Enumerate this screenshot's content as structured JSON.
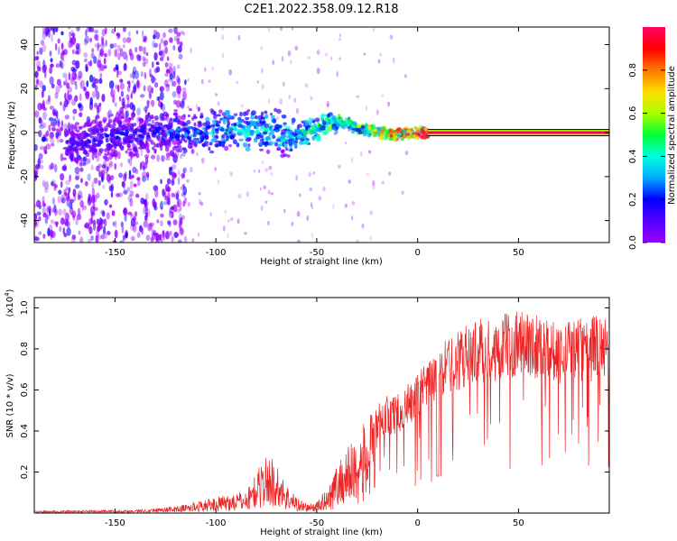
{
  "title": "C2E1.2022.358.09.12.R18",
  "colors": {
    "snr_line": "#ee2222",
    "axis": "#000000",
    "background": "#ffffff",
    "colorbar": [
      "#9900ff",
      "#5500ff",
      "#0000ff",
      "#00aaff",
      "#00ffdd",
      "#00ff33",
      "#aaff00",
      "#ffdd00",
      "#ff7700",
      "#ff0000",
      "#ff0066"
    ]
  },
  "chart_data": [
    {
      "type": "heatmap",
      "name": "spectrogram",
      "xlabel": "Height of straight line (km)",
      "ylabel": "Frequency (Hz)",
      "xlim": [
        -190,
        95
      ],
      "ylim": [
        -50,
        48
      ],
      "xticks": [
        -150,
        -100,
        -50,
        0,
        50
      ],
      "xtick_labels": [
        "-150",
        "-100",
        "-50",
        "0",
        "50"
      ],
      "yticks": [
        -40,
        -20,
        0,
        20,
        40
      ],
      "ytick_labels": [
        "-40",
        "-20",
        "0",
        "20",
        "40"
      ],
      "colorbar": {
        "label": "Normalized spectral amplitude",
        "range": [
          0,
          1
        ],
        "ticks": [
          0.0,
          0.2,
          0.4,
          0.6,
          0.8
        ],
        "tick_labels": [
          "0.0",
          "0.2",
          "0.4",
          "0.6",
          "0.8"
        ]
      },
      "ridge_x": [
        -170,
        -150,
        -130,
        -110,
        -90,
        -70,
        -65,
        -55,
        -45,
        -38,
        -30,
        -20,
        -10,
        0,
        5,
        95
      ],
      "ridge_y": [
        -5,
        -2,
        0,
        0,
        2,
        1,
        -3,
        0,
        3,
        5,
        2,
        0,
        -1,
        0,
        0,
        0
      ],
      "ridge_amp": [
        0.15,
        0.2,
        0.2,
        0.3,
        0.4,
        0.42,
        0.4,
        0.45,
        0.5,
        0.5,
        0.55,
        0.7,
        0.8,
        0.85,
        0.95,
        0.95
      ]
    },
    {
      "type": "line",
      "name": "snr",
      "xlabel": "Height of straight line (km)",
      "ylabel": "SNR (10 * v/v)",
      "scale_label": "(x10",
      "scale_exp": "4",
      "scale_close": ")",
      "xlim": [
        -190,
        95
      ],
      "ylim": [
        0,
        1.05
      ],
      "xticks": [
        -150,
        -100,
        -50,
        0,
        50
      ],
      "xtick_labels": [
        "-150",
        "-100",
        "-50",
        "0",
        "50"
      ],
      "yticks": [
        0.2,
        0.4,
        0.6,
        0.8,
        1.0
      ],
      "ytick_labels": [
        "0.2",
        "0.4",
        "0.6",
        "0.8",
        "1.0"
      ],
      "envelope_x": [
        -190,
        -140,
        -120,
        -105,
        -95,
        -85,
        -80,
        -76,
        -72,
        -68,
        -63,
        -58,
        -54,
        -50,
        -46,
        -42,
        -38,
        -35,
        -30,
        -25,
        -20,
        -15,
        -10,
        -5,
        0,
        5,
        10,
        15,
        20,
        25,
        30,
        40,
        45,
        50,
        55,
        60,
        65,
        70,
        75,
        80,
        85,
        90,
        95
      ],
      "envelope_y": [
        0.01,
        0.015,
        0.03,
        0.06,
        0.08,
        0.1,
        0.18,
        0.25,
        0.25,
        0.18,
        0.1,
        0.06,
        0.04,
        0.05,
        0.1,
        0.18,
        0.25,
        0.3,
        0.35,
        0.42,
        0.5,
        0.55,
        0.55,
        0.6,
        0.65,
        0.7,
        0.75,
        0.82,
        0.85,
        0.88,
        0.9,
        0.92,
        0.93,
        0.96,
        0.93,
        0.94,
        0.92,
        0.9,
        0.9,
        0.92,
        0.9,
        0.95,
        0.9
      ]
    }
  ]
}
